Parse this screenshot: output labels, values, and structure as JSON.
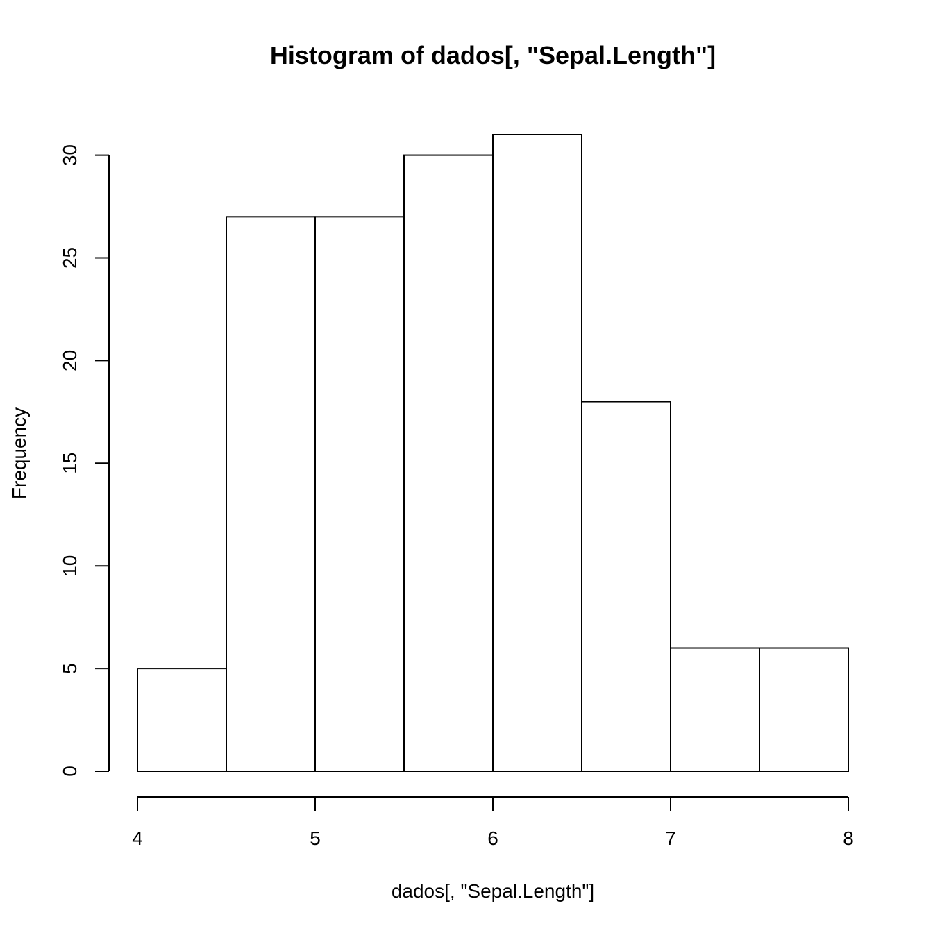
{
  "chart_data": {
    "type": "bar",
    "title": "Histogram of dados[, \"Sepal.Length\"]",
    "xlabel": "dados[, \"Sepal.Length\"]",
    "ylabel": "Frequency",
    "bins": [
      {
        "from": 4.0,
        "to": 4.5,
        "count": 5
      },
      {
        "from": 4.5,
        "to": 5.0,
        "count": 27
      },
      {
        "from": 5.0,
        "to": 5.5,
        "count": 27
      },
      {
        "from": 5.5,
        "to": 6.0,
        "count": 30
      },
      {
        "from": 6.0,
        "to": 6.5,
        "count": 31
      },
      {
        "from": 6.5,
        "to": 7.0,
        "count": 18
      },
      {
        "from": 7.0,
        "to": 7.5,
        "count": 6
      },
      {
        "from": 7.5,
        "to": 8.0,
        "count": 6
      }
    ],
    "xlim": [
      4,
      8
    ],
    "ylim": [
      0,
      31
    ],
    "x_ticks": [
      "4",
      "5",
      "6",
      "7",
      "8"
    ],
    "y_ticks": [
      "0",
      "5",
      "10",
      "15",
      "20",
      "25",
      "30"
    ],
    "grid": false,
    "bar_fill": "#ffffff",
    "bar_stroke": "#000000"
  }
}
